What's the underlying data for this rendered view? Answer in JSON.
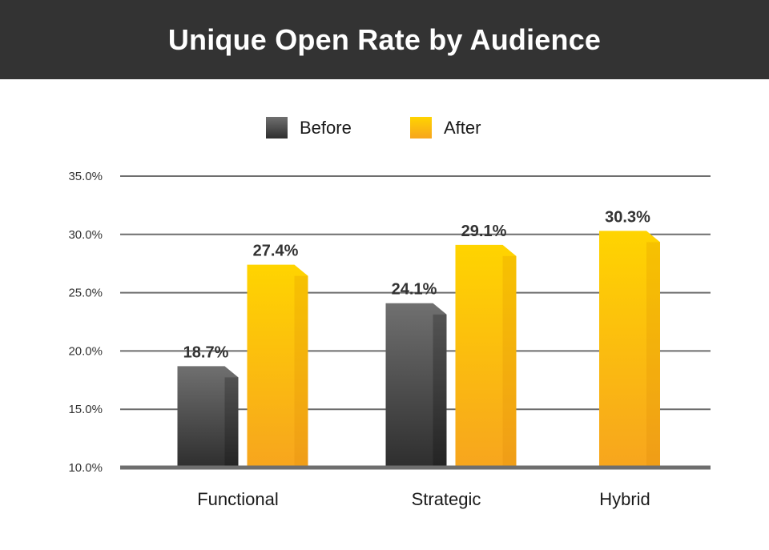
{
  "chart_data": {
    "type": "bar",
    "title": "Unique Open Rate by Audience",
    "categories": [
      "Functional",
      "Strategic",
      "Hybrid"
    ],
    "series": [
      {
        "name": "Before",
        "values": [
          18.7,
          24.1,
          null
        ],
        "labels": [
          "18.7%",
          "24.1%",
          ""
        ]
      },
      {
        "name": "After",
        "values": [
          27.4,
          29.1,
          30.3
        ],
        "labels": [
          "27.4%",
          "29.1%",
          "30.3%"
        ]
      }
    ],
    "ylim": [
      10,
      35
    ],
    "yticks": [
      10,
      15,
      20,
      25,
      30,
      35
    ],
    "ytick_labels": [
      "10.0%",
      "15.0%",
      "20.0%",
      "25.0%",
      "30.0%",
      "35.0%"
    ],
    "xlabel": "",
    "ylabel": "",
    "grid": true,
    "legend": "top-center"
  },
  "colors": {
    "header_bg": "#333333",
    "before_top": "#707070",
    "before_bottom": "#2e2e2e",
    "after_top": "#ffd400",
    "after_bottom": "#f7a51e",
    "grid": "#6e6e6e"
  }
}
